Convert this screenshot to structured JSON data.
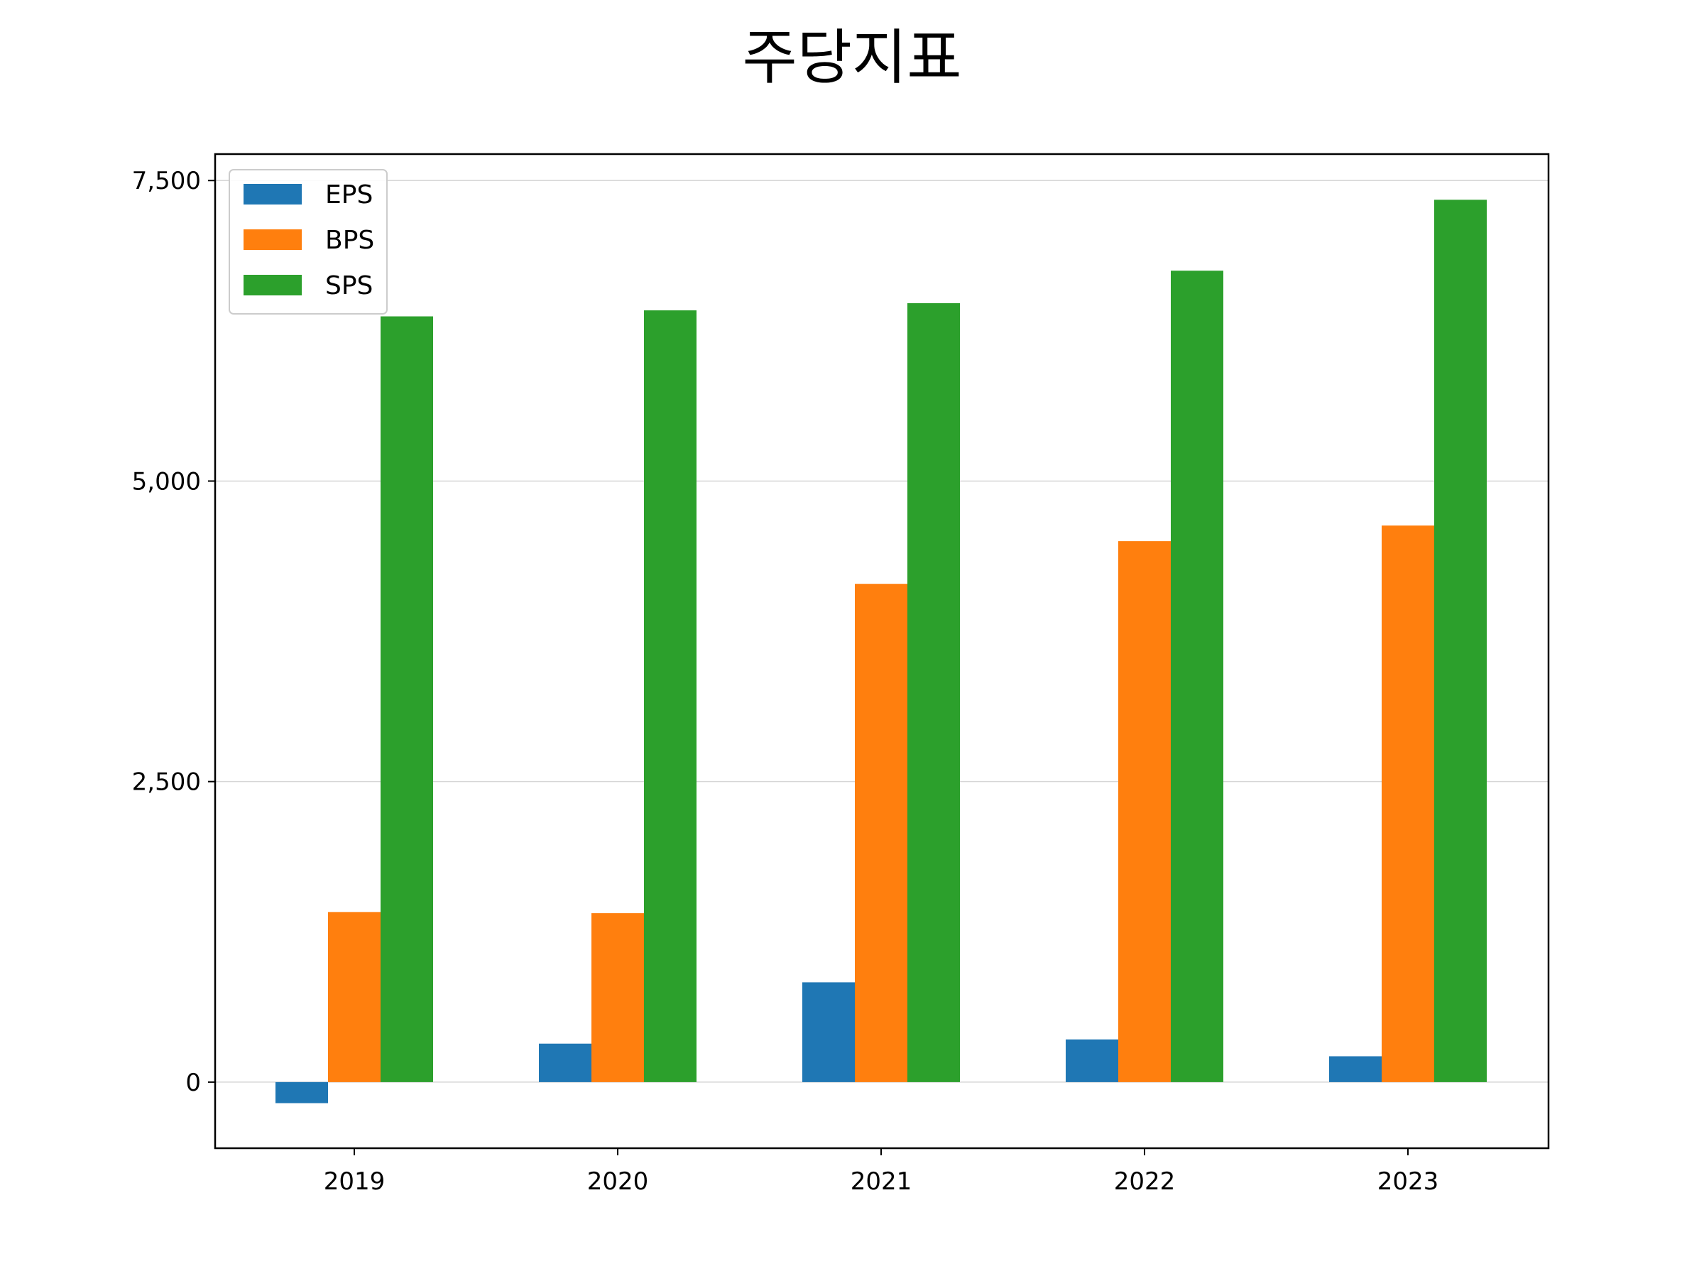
{
  "chart_data": {
    "type": "bar",
    "title": "주당지표",
    "xlabel": "",
    "ylabel": "",
    "categories": [
      "2019",
      "2020",
      "2021",
      "2022",
      "2023"
    ],
    "series": [
      {
        "name": "EPS",
        "color": "#1f77b4",
        "values": [
          -175,
          320,
          830,
          355,
          215
        ]
      },
      {
        "name": "BPS",
        "color": "#ff7f0e",
        "values": [
          1415,
          1405,
          4145,
          4500,
          4630
        ]
      },
      {
        "name": "SPS",
        "color": "#2ca02c",
        "values": [
          6370,
          6420,
          6480,
          6750,
          7340
        ]
      }
    ],
    "ylim": [
      -550,
      7720
    ],
    "yticks": [
      0,
      2500,
      5000,
      7500
    ],
    "ytick_labels": [
      "0",
      "2,500",
      "5,000",
      "7,500"
    ],
    "grid": "y",
    "legend": "top-left"
  }
}
